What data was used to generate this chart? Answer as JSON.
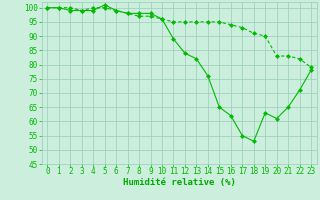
{
  "line1_x": [
    0,
    1,
    2,
    3,
    4,
    5,
    6,
    7,
    8,
    9,
    10,
    11,
    12,
    13,
    14,
    15,
    16,
    17,
    18,
    19,
    20,
    21,
    22,
    23
  ],
  "line1_y": [
    100,
    100,
    99,
    99,
    99,
    101,
    99,
    98,
    98,
    98,
    96,
    89,
    84,
    82,
    76,
    65,
    62,
    55,
    53,
    63,
    61,
    65,
    71,
    78
  ],
  "line2_x": [
    0,
    1,
    2,
    3,
    4,
    5,
    6,
    7,
    8,
    9,
    10,
    11,
    12,
    13,
    14,
    15,
    16,
    17,
    18,
    19,
    20,
    21,
    22,
    23
  ],
  "line2_y": [
    100,
    100,
    100,
    99,
    100,
    100,
    99,
    98,
    97,
    97,
    96,
    95,
    95,
    95,
    95,
    95,
    94,
    93,
    91,
    90,
    83,
    83,
    82,
    79
  ],
  "line_color": "#00bb00",
  "bg_color": "#cceedd",
  "grid_color": "#99ccbb",
  "xlabel": "Humidité relative (%)",
  "xlabel_color": "#00aa00",
  "ylim": [
    45,
    102
  ],
  "xlim": [
    -0.5,
    23.5
  ],
  "yticks": [
    45,
    50,
    55,
    60,
    65,
    70,
    75,
    80,
    85,
    90,
    95,
    100
  ],
  "xticks": [
    0,
    1,
    2,
    3,
    4,
    5,
    6,
    7,
    8,
    9,
    10,
    11,
    12,
    13,
    14,
    15,
    16,
    17,
    18,
    19,
    20,
    21,
    22,
    23
  ],
  "tick_fontsize": 5.5,
  "xlabel_fontsize": 6.5
}
